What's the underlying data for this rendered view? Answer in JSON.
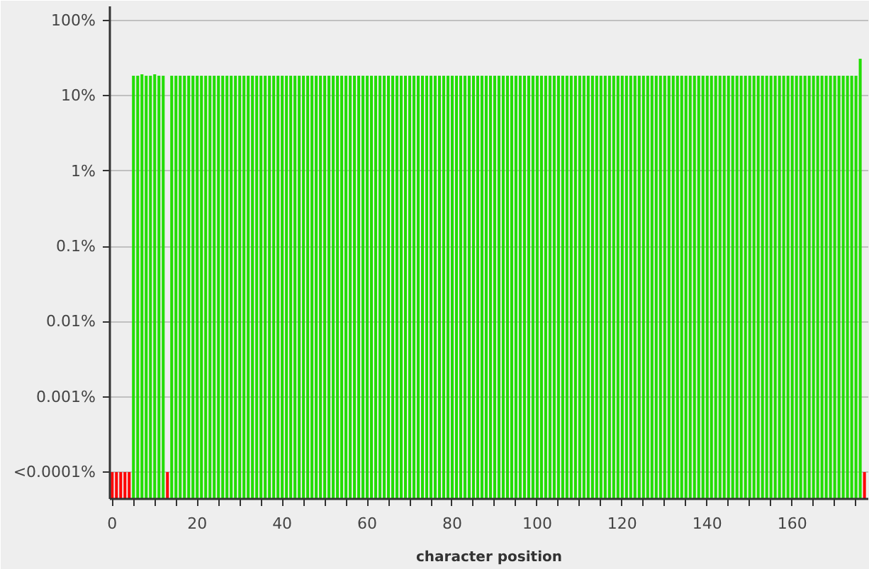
{
  "chart_data": {
    "type": "bar",
    "xlabel": "character position",
    "x": [
      0,
      1,
      2,
      3,
      4,
      5,
      6,
      7,
      8,
      9,
      10,
      11,
      12,
      13,
      14,
      15,
      16,
      17,
      18,
      19,
      20,
      21,
      22,
      23,
      24,
      25,
      26,
      27,
      28,
      29,
      30,
      31,
      32,
      33,
      34,
      35,
      36,
      37,
      38,
      39,
      40,
      41,
      42,
      43,
      44,
      45,
      46,
      47,
      48,
      49,
      50,
      51,
      52,
      53,
      54,
      55,
      56,
      57,
      58,
      59,
      60,
      61,
      62,
      63,
      64,
      65,
      66,
      67,
      68,
      69,
      70,
      71,
      72,
      73,
      74,
      75,
      76,
      77,
      78,
      79,
      80,
      81,
      82,
      83,
      84,
      85,
      86,
      87,
      88,
      89,
      90,
      91,
      92,
      93,
      94,
      95,
      96,
      97,
      98,
      99,
      100,
      101,
      102,
      103,
      104,
      105,
      106,
      107,
      108,
      109,
      110,
      111,
      112,
      113,
      114,
      115,
      116,
      117,
      118,
      119,
      120,
      121,
      122,
      123,
      124,
      125,
      126,
      127,
      128,
      129,
      130,
      131,
      132,
      133,
      134,
      135,
      136,
      137,
      138,
      139,
      140,
      141,
      142,
      143,
      144,
      145,
      146,
      147,
      148,
      149,
      150,
      151,
      152,
      153,
      154,
      155,
      156,
      157,
      158,
      159,
      160,
      161,
      162,
      163,
      164,
      165,
      166,
      167,
      168,
      169,
      170,
      171,
      172,
      173,
      174,
      175,
      176,
      177
    ],
    "values": [
      0.0001,
      0.0001,
      0.0001,
      0.0001,
      0.0001,
      18.5,
      18.5,
      19.3,
      18.5,
      18.5,
      19.3,
      18.5,
      18.5,
      0.0001,
      18.5,
      18.5,
      18.5,
      18.5,
      18.5,
      18.5,
      18.5,
      18.5,
      18.5,
      18.5,
      18.5,
      18.5,
      18.5,
      18.5,
      18.5,
      18.5,
      18.5,
      18.5,
      18.5,
      18.5,
      18.5,
      18.5,
      18.5,
      18.5,
      18.5,
      18.5,
      18.5,
      18.5,
      18.5,
      18.5,
      18.5,
      18.5,
      18.5,
      18.5,
      18.5,
      18.5,
      18.5,
      18.5,
      18.5,
      18.5,
      18.5,
      18.5,
      18.5,
      18.5,
      18.5,
      18.5,
      18.5,
      18.5,
      18.5,
      18.5,
      18.5,
      18.5,
      18.5,
      18.5,
      18.5,
      18.5,
      18.5,
      18.5,
      18.5,
      18.5,
      18.5,
      18.5,
      18.5,
      18.5,
      18.5,
      18.5,
      18.5,
      18.5,
      18.5,
      18.5,
      18.5,
      18.5,
      18.5,
      18.5,
      18.5,
      18.5,
      18.5,
      18.5,
      18.5,
      18.5,
      18.5,
      18.5,
      18.5,
      18.5,
      18.5,
      18.5,
      18.5,
      18.5,
      18.5,
      18.5,
      18.5,
      18.5,
      18.5,
      18.5,
      18.5,
      18.5,
      18.5,
      18.5,
      18.5,
      18.5,
      18.5,
      18.5,
      18.5,
      18.5,
      18.5,
      18.5,
      18.5,
      18.5,
      18.5,
      18.5,
      18.5,
      18.5,
      18.5,
      18.5,
      18.5,
      18.5,
      18.5,
      18.5,
      18.5,
      18.5,
      18.5,
      18.5,
      18.5,
      18.5,
      18.5,
      18.5,
      18.5,
      18.5,
      18.5,
      18.5,
      18.5,
      18.5,
      18.5,
      18.5,
      18.5,
      18.5,
      18.5,
      18.5,
      18.5,
      18.5,
      18.5,
      18.5,
      18.5,
      18.5,
      18.5,
      18.5,
      18.5,
      18.5,
      18.5,
      18.5,
      18.5,
      18.5,
      18.5,
      18.5,
      18.5,
      18.5,
      18.5,
      18.5,
      18.5,
      18.5,
      18.5,
      18.5,
      31,
      0.0001
    ],
    "colors": [
      "#ff0000",
      "#ff0000",
      "#ff0000",
      "#ff0000",
      "#ff0000",
      "#22dd00",
      "#22dd00",
      "#22dd00",
      "#22dd00",
      "#22dd00",
      "#22dd00",
      "#22dd00",
      "#22dd00",
      "#ff0000",
      "#22dd00",
      "#22dd00",
      "#22dd00",
      "#22dd00",
      "#22dd00",
      "#22dd00",
      "#22dd00",
      "#22dd00",
      "#22dd00",
      "#22dd00",
      "#22dd00",
      "#22dd00",
      "#22dd00",
      "#22dd00",
      "#22dd00",
      "#22dd00",
      "#22dd00",
      "#22dd00",
      "#22dd00",
      "#22dd00",
      "#22dd00",
      "#22dd00",
      "#22dd00",
      "#22dd00",
      "#22dd00",
      "#22dd00",
      "#22dd00",
      "#22dd00",
      "#22dd00",
      "#22dd00",
      "#22dd00",
      "#22dd00",
      "#22dd00",
      "#22dd00",
      "#22dd00",
      "#22dd00",
      "#22dd00",
      "#22dd00",
      "#22dd00",
      "#22dd00",
      "#22dd00",
      "#22dd00",
      "#22dd00",
      "#22dd00",
      "#22dd00",
      "#22dd00",
      "#22dd00",
      "#22dd00",
      "#22dd00",
      "#22dd00",
      "#22dd00",
      "#22dd00",
      "#22dd00",
      "#22dd00",
      "#22dd00",
      "#22dd00",
      "#22dd00",
      "#22dd00",
      "#22dd00",
      "#22dd00",
      "#22dd00",
      "#22dd00",
      "#22dd00",
      "#22dd00",
      "#22dd00",
      "#22dd00",
      "#22dd00",
      "#22dd00",
      "#22dd00",
      "#22dd00",
      "#22dd00",
      "#22dd00",
      "#22dd00",
      "#22dd00",
      "#22dd00",
      "#22dd00",
      "#22dd00",
      "#22dd00",
      "#22dd00",
      "#22dd00",
      "#22dd00",
      "#22dd00",
      "#22dd00",
      "#22dd00",
      "#22dd00",
      "#22dd00",
      "#22dd00",
      "#22dd00",
      "#22dd00",
      "#22dd00",
      "#22dd00",
      "#22dd00",
      "#22dd00",
      "#22dd00",
      "#22dd00",
      "#22dd00",
      "#22dd00",
      "#22dd00",
      "#22dd00",
      "#22dd00",
      "#22dd00",
      "#22dd00",
      "#22dd00",
      "#22dd00",
      "#22dd00",
      "#22dd00",
      "#22dd00",
      "#22dd00",
      "#22dd00",
      "#22dd00",
      "#22dd00",
      "#22dd00",
      "#22dd00",
      "#22dd00",
      "#22dd00",
      "#22dd00",
      "#22dd00",
      "#22dd00",
      "#22dd00",
      "#22dd00",
      "#22dd00",
      "#22dd00",
      "#22dd00",
      "#22dd00",
      "#22dd00",
      "#22dd00",
      "#22dd00",
      "#22dd00",
      "#22dd00",
      "#22dd00",
      "#22dd00",
      "#22dd00",
      "#22dd00",
      "#22dd00",
      "#22dd00",
      "#22dd00",
      "#22dd00",
      "#22dd00",
      "#22dd00",
      "#22dd00",
      "#22dd00",
      "#22dd00",
      "#22dd00",
      "#22dd00",
      "#22dd00",
      "#22dd00",
      "#22dd00",
      "#22dd00",
      "#22dd00",
      "#22dd00",
      "#22dd00",
      "#22dd00",
      "#22dd00",
      "#22dd00",
      "#22dd00",
      "#22dd00",
      "#22dd00",
      "#22dd00",
      "#22dd00",
      "#22dd00",
      "#22dd00",
      "#22dd00",
      "#22dd00",
      "#ff0000"
    ],
    "xlim": [
      -0.55,
      177.9
    ],
    "xticks": [
      0,
      {
        "value": 5,
        "label": null
      },
      {
        "value": 10,
        "label": null
      },
      {
        "value": 15,
        "label": null
      },
      20,
      {
        "value": 25,
        "label": null
      },
      {
        "value": 30,
        "label": null
      },
      {
        "value": 35,
        "label": null
      },
      40,
      {
        "value": 45,
        "label": null
      },
      {
        "value": 50,
        "label": null
      },
      {
        "value": 55,
        "label": null
      },
      60,
      {
        "value": 65,
        "label": null
      },
      {
        "value": 70,
        "label": null
      },
      {
        "value": 75,
        "label": null
      },
      80,
      {
        "value": 85,
        "label": null
      },
      {
        "value": 90,
        "label": null
      },
      {
        "value": 95,
        "label": null
      },
      100,
      {
        "value": 105,
        "label": null
      },
      {
        "value": 110,
        "label": null
      },
      {
        "value": 115,
        "label": null
      },
      120,
      {
        "value": 125,
        "label": null
      },
      {
        "value": 130,
        "label": null
      },
      {
        "value": 135,
        "label": null
      },
      140,
      {
        "value": 145,
        "label": null
      },
      {
        "value": 150,
        "label": null
      },
      {
        "value": 155,
        "label": null
      },
      160,
      {
        "value": 165,
        "label": null
      },
      {
        "value": 170,
        "label": null
      },
      {
        "value": 175,
        "label": null
      }
    ],
    "ylim": [
      4.4e-05,
      154
    ],
    "yticks": [
      {
        "value": 0.0001,
        "label": "<0.0001%"
      },
      {
        "value": 0.001,
        "label": "0.001%"
      },
      {
        "value": 0.01,
        "label": "0.01%"
      },
      {
        "value": 0.1,
        "label": "0.1%"
      },
      {
        "value": 1,
        "label": "1%"
      },
      {
        "value": 10,
        "label": "10%"
      },
      {
        "value": 100,
        "label": "100%"
      }
    ],
    "log": true,
    "grid": "y"
  }
}
